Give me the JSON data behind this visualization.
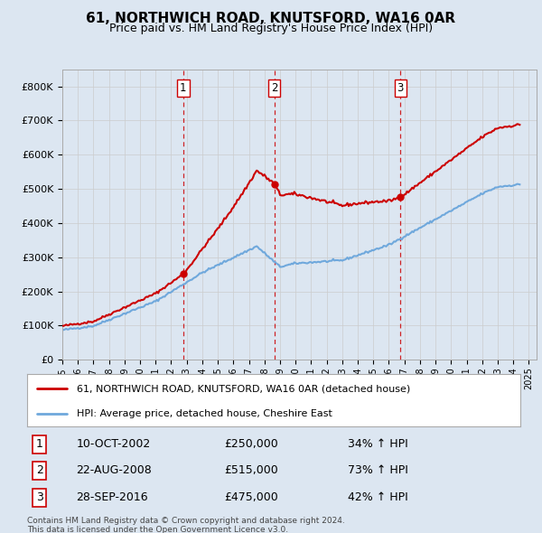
{
  "title": "61, NORTHWICH ROAD, KNUTSFORD, WA16 0AR",
  "subtitle": "Price paid vs. HM Land Registry's House Price Index (HPI)",
  "property_label": "61, NORTHWICH ROAD, KNUTSFORD, WA16 0AR (detached house)",
  "hpi_label": "HPI: Average price, detached house, Cheshire East",
  "footer1": "Contains HM Land Registry data © Crown copyright and database right 2024.",
  "footer2": "This data is licensed under the Open Government Licence v3.0.",
  "transactions": [
    {
      "num": 1,
      "date": "10-OCT-2002",
      "price": 250000,
      "hpi_pct": "34% ↑ HPI",
      "x": 2002.78
    },
    {
      "num": 2,
      "date": "22-AUG-2008",
      "price": 515000,
      "hpi_pct": "73% ↑ HPI",
      "x": 2008.64
    },
    {
      "num": 3,
      "date": "28-SEP-2016",
      "price": 475000,
      "hpi_pct": "42% ↑ HPI",
      "x": 2016.74
    }
  ],
  "hpi_color": "#6fa8dc",
  "price_color": "#cc0000",
  "vline_color": "#cc0000",
  "background_color": "#dce6f1",
  "ylim": [
    0,
    850000
  ],
  "xlim_start": 1995.0,
  "xlim_end": 2025.5
}
